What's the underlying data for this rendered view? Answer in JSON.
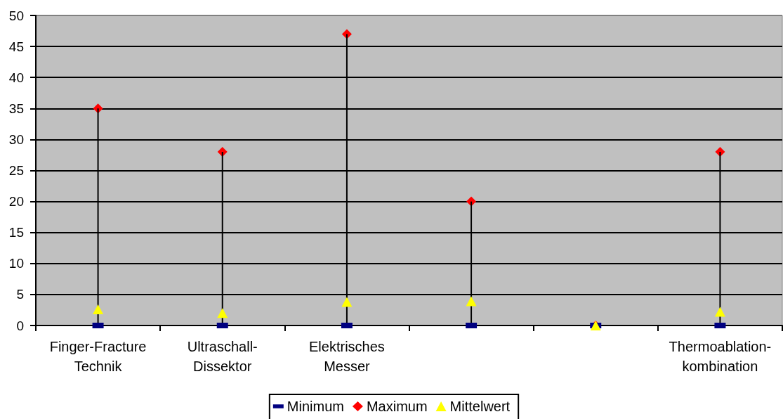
{
  "chart_data": {
    "type": "scatter",
    "categories": [
      "Finger-Fracture Technik",
      "Ultraschall-Dissektor",
      "Elektrisches Messer",
      null,
      null,
      "Thermoablation-kombination"
    ],
    "series": [
      {
        "type": "bar",
        "color": "#000000",
        "values": [
          35,
          28,
          47,
          20,
          0,
          28
        ]
      },
      {
        "name": "Minimum",
        "color": "#000080",
        "marker": "square",
        "values": [
          0,
          0,
          0,
          0,
          0,
          0
        ]
      },
      {
        "name": "Maximum",
        "color": "#ff0000",
        "marker": "diamond",
        "values": [
          35,
          28,
          47,
          20,
          0,
          28
        ]
      },
      {
        "name": "Mittelwert",
        "color": "#ffff00",
        "marker": "triangle",
        "values": [
          2.6,
          2.0,
          3.8,
          3.9,
          0,
          2.2
        ]
      }
    ],
    "ylim": [
      0,
      50
    ],
    "yticks": [
      0,
      5,
      10,
      15,
      20,
      25,
      30,
      35,
      40,
      45,
      50
    ],
    "grid": "y",
    "legend": "bottom"
  }
}
